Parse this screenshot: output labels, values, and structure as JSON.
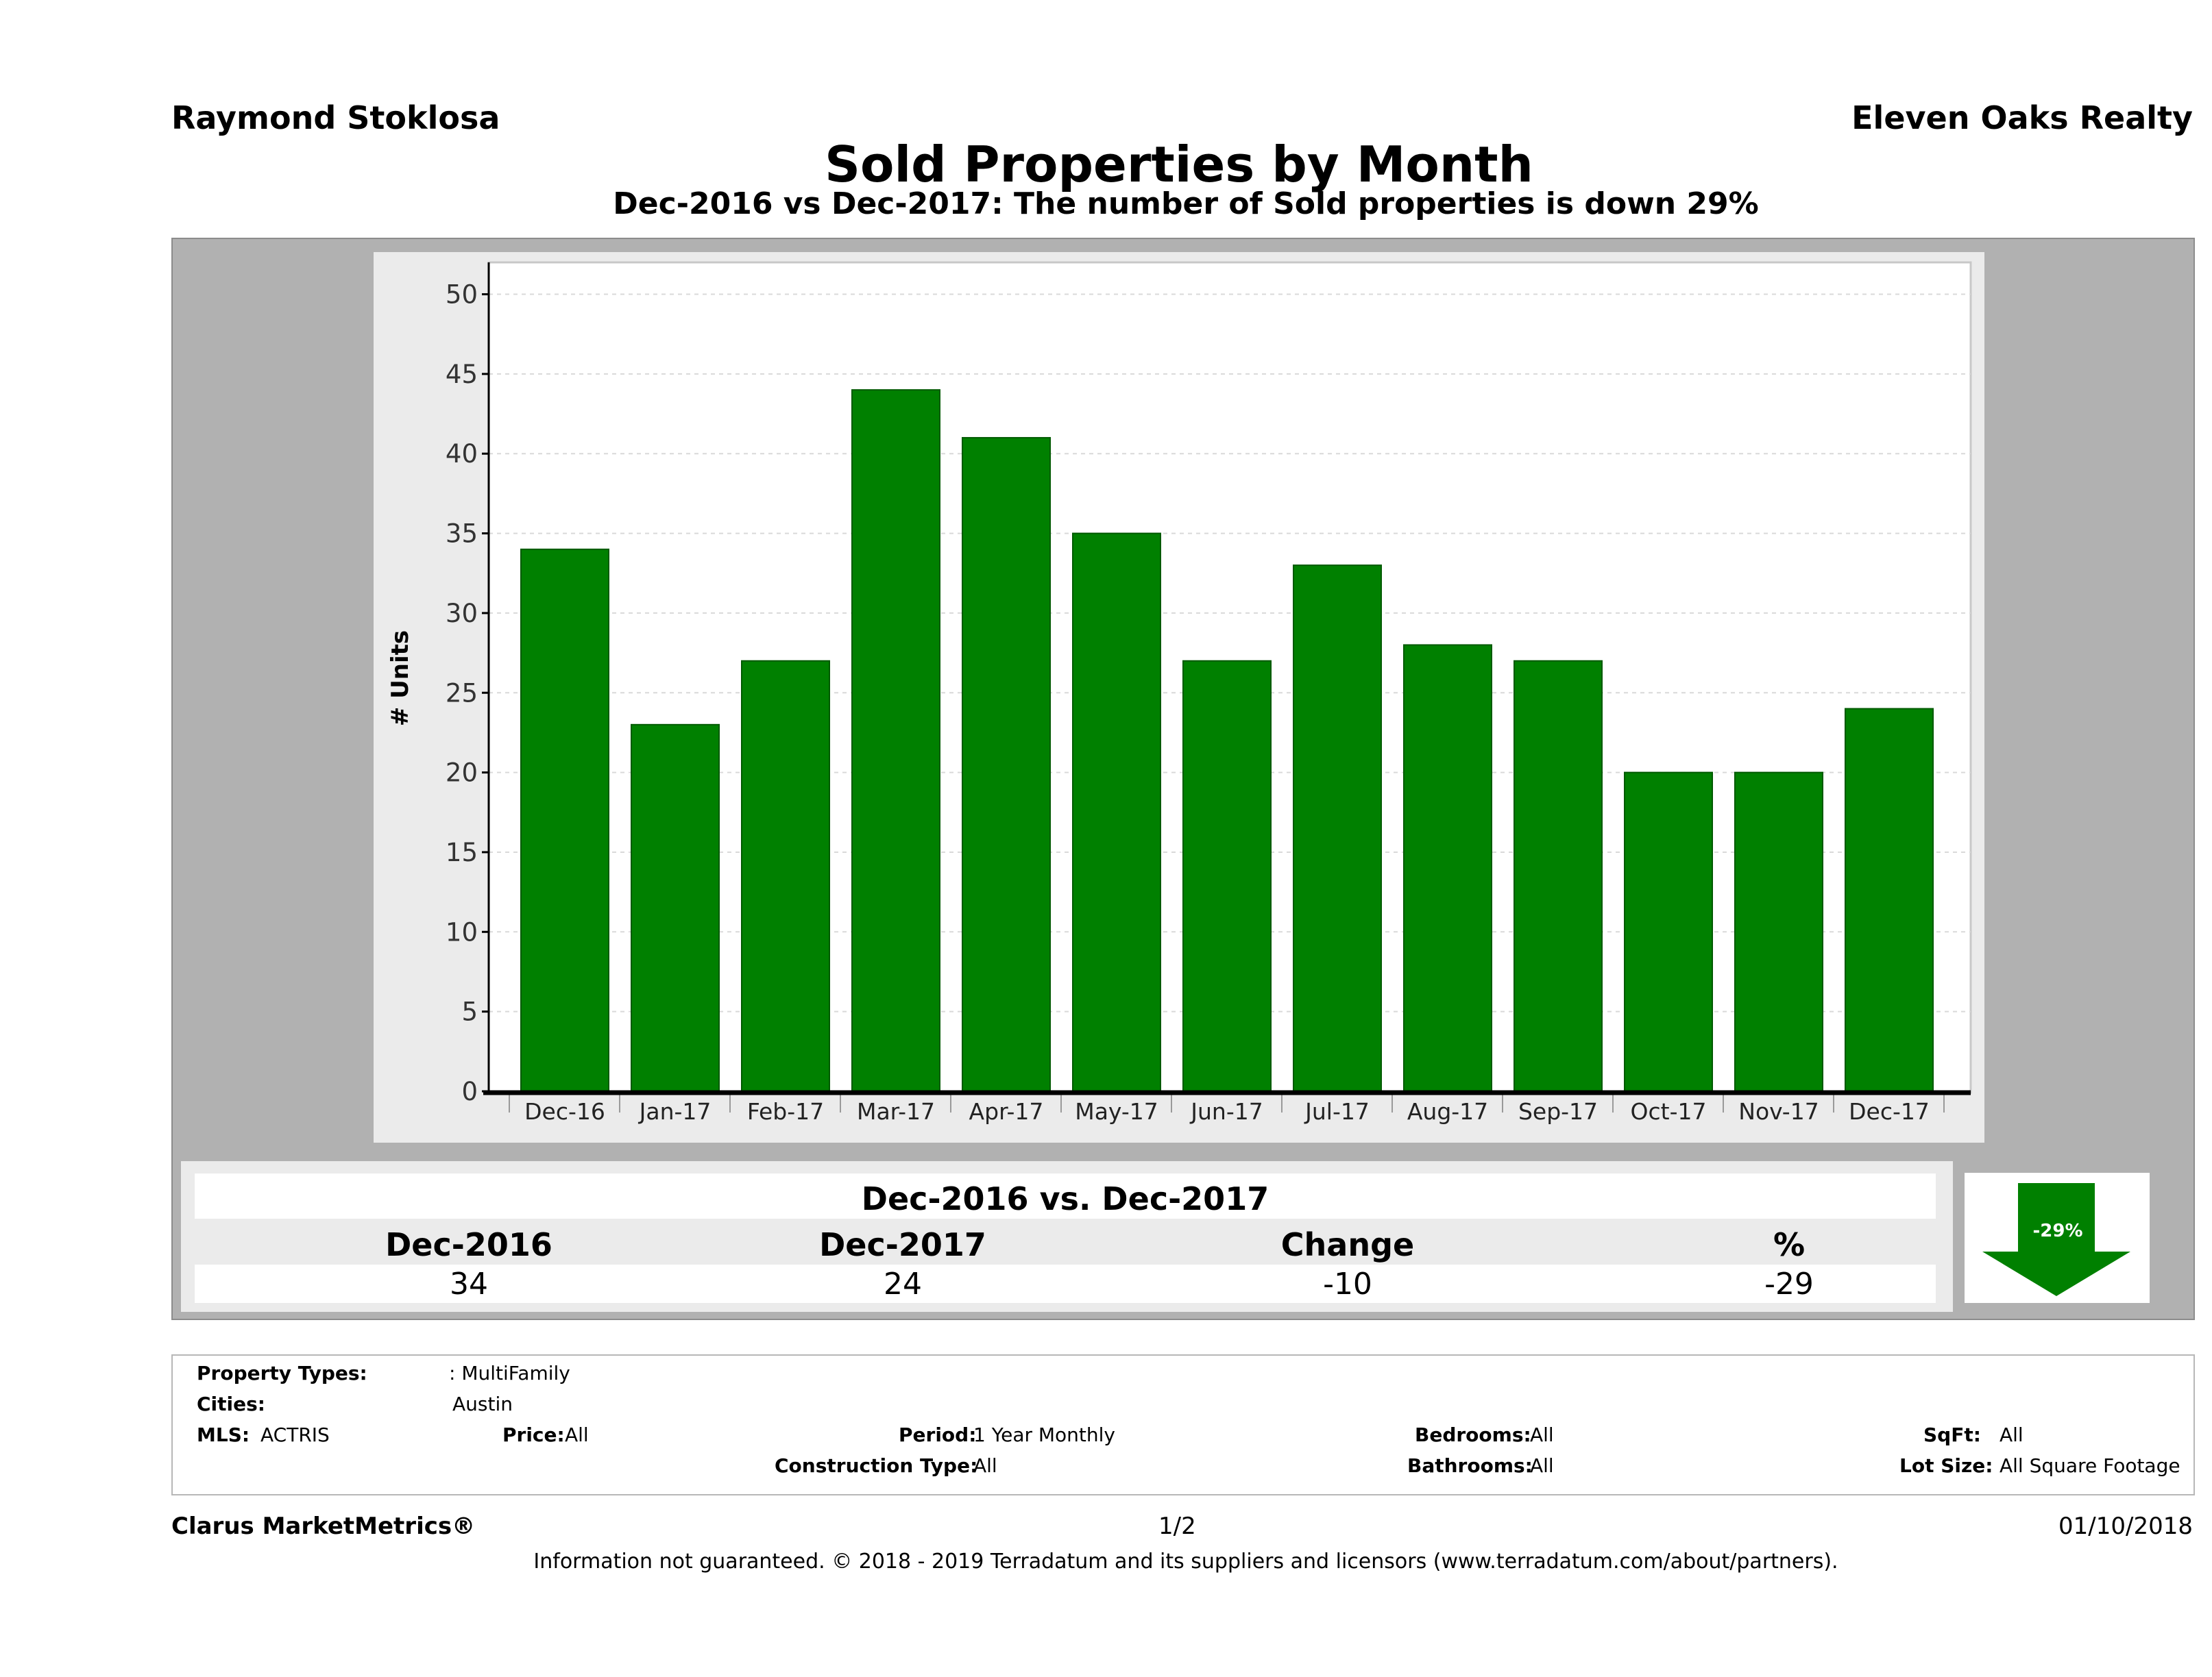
{
  "header": {
    "agent": "Raymond Stoklosa",
    "brokerage": "Eleven Oaks Realty",
    "title": "Sold Properties by Month",
    "subtitle": "Dec-2016 vs Dec-2017: The number of Sold  properties is down 29%"
  },
  "chart_data": {
    "type": "bar",
    "categories": [
      "Dec-16",
      "Jan-17",
      "Feb-17",
      "Mar-17",
      "Apr-17",
      "May-17",
      "Jun-17",
      "Jul-17",
      "Aug-17",
      "Sep-17",
      "Oct-17",
      "Nov-17",
      "Dec-17"
    ],
    "values": [
      34,
      23,
      27,
      44,
      41,
      35,
      27,
      33,
      28,
      27,
      20,
      20,
      24
    ],
    "ylabel": "# Units",
    "ylim": [
      0,
      52
    ],
    "yticks": [
      0,
      5,
      10,
      15,
      20,
      25,
      30,
      35,
      40,
      45,
      50
    ],
    "grid": true,
    "bar_color": "#008000"
  },
  "comparison": {
    "title": "Dec-2016 vs. Dec-2017",
    "headers": [
      "Dec-2016",
      "Dec-2017",
      "Change",
      "%"
    ],
    "values": [
      "34",
      "24",
      "-10",
      "-29"
    ],
    "badge": "-29%",
    "arrow_color": "#008000"
  },
  "filters": {
    "property_types_label": "Property Types:",
    "property_types_value": ": MultiFamily",
    "cities_label": "Cities:",
    "cities_value": "Austin",
    "mls_label": "MLS:",
    "mls_value": "ACTRIS",
    "price_label": "Price:",
    "price_value": "All",
    "period_label": "Period:",
    "period_value": "1 Year Monthly",
    "construction_label": "Construction Type:",
    "construction_value": "All",
    "bedrooms_label": "Bedrooms:",
    "bedrooms_value": "All",
    "bathrooms_label": "Bathrooms:",
    "bathrooms_value": "All",
    "sqft_label": "SqFt:",
    "sqft_value": "All",
    "lotsize_label": "Lot Size:",
    "lotsize_value": "All Square Footage"
  },
  "footer": {
    "brand": "Clarus MarketMetrics®",
    "page": "1/2",
    "date": "01/10/2018",
    "disclaimer": "Information not guaranteed. © 2018 - 2019 Terradatum and its suppliers and licensors (www.terradatum.com/about/partners)."
  }
}
